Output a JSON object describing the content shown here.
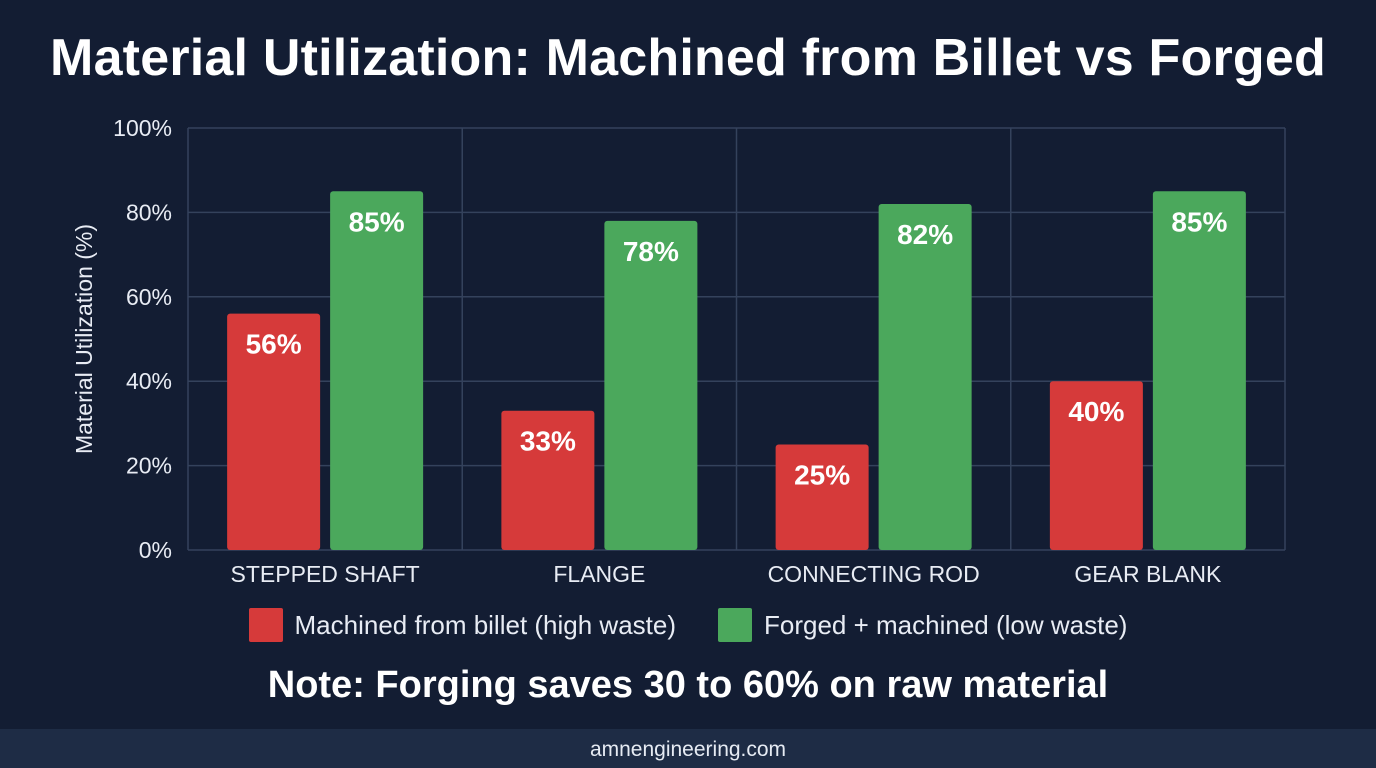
{
  "title": "Material Utilization: Machined from Billet vs Forged",
  "note": "Note: Forging saves 30 to 60% on raw material",
  "footer": {
    "site": "amnengineering.com"
  },
  "colors": {
    "background": "#131d33",
    "grid": "#34425c",
    "billet": "#d63a3a",
    "forged": "#4ba85c",
    "footer_bar": "#1e2c45"
  },
  "chart_data": {
    "type": "bar",
    "title": "Material Utilization: Machined from Billet vs Forged",
    "xlabel": "",
    "ylabel": "Material Utilization (%)",
    "ylim": [
      0,
      100
    ],
    "yticks": [
      0,
      20,
      40,
      60,
      80,
      100
    ],
    "ytick_labels": [
      "0%",
      "20%",
      "40%",
      "60%",
      "80%",
      "100%"
    ],
    "categories": [
      "STEPPED SHAFT",
      "FLANGE",
      "CONNECTING ROD",
      "GEAR BLANK"
    ],
    "series": [
      {
        "name": "Machined from billet (high waste)",
        "values": [
          56,
          33,
          25,
          40
        ],
        "color": "#d63a3a"
      },
      {
        "name": "Forged + machined (low waste)",
        "values": [
          85,
          78,
          82,
          85
        ],
        "color": "#4ba85c"
      }
    ],
    "value_labels": [
      [
        "56%",
        "33%",
        "25%",
        "40%"
      ],
      [
        "85%",
        "78%",
        "82%",
        "85%"
      ]
    ],
    "grid": true,
    "legend_position": "bottom"
  }
}
